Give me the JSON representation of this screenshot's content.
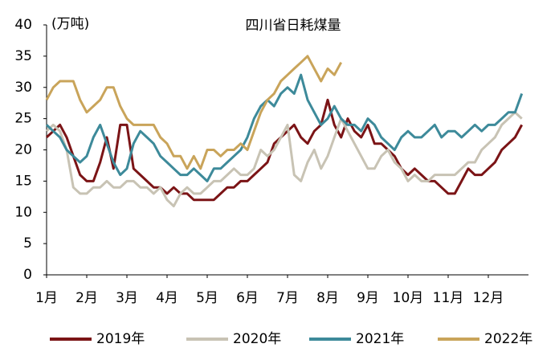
{
  "chart_data": {
    "type": "line",
    "title": "四川省日耗煤量",
    "y_label": "(万吨)",
    "categories": [
      "1月",
      null,
      null,
      null,
      null,
      null,
      "2月",
      null,
      null,
      null,
      null,
      null,
      "3月",
      null,
      null,
      null,
      null,
      null,
      "4月",
      null,
      null,
      null,
      null,
      null,
      "5月",
      null,
      null,
      null,
      null,
      null,
      "6月",
      null,
      null,
      null,
      null,
      null,
      "7月",
      null,
      null,
      null,
      null,
      null,
      "8月",
      null,
      null,
      null,
      null,
      null,
      "9月",
      null,
      null,
      null,
      null,
      null,
      "10月",
      null,
      null,
      null,
      null,
      null,
      "11月",
      null,
      null,
      null,
      null,
      null,
      "12月",
      null,
      null,
      null,
      null,
      null
    ],
    "series": [
      {
        "name": "2019年",
        "color": "#7b1416",
        "values": [
          22,
          23,
          24,
          22,
          19,
          16,
          15,
          15,
          18,
          22,
          17,
          24,
          24,
          17,
          16,
          15,
          14,
          14,
          13,
          14,
          13,
          13,
          12,
          12,
          12,
          12,
          13,
          14,
          14,
          15,
          15,
          16,
          17,
          18,
          21,
          22,
          23,
          24,
          22,
          21,
          23,
          24,
          28,
          24,
          22,
          25,
          23,
          22,
          24,
          21,
          21,
          20,
          19,
          17,
          16,
          17,
          16,
          15,
          15,
          14,
          13,
          13,
          15,
          17,
          16,
          16,
          17,
          18,
          20,
          21,
          22,
          24
        ]
      },
      {
        "name": "2020年",
        "color": "#c8c3b4",
        "values": [
          23,
          24,
          23,
          20,
          14,
          13,
          13,
          14,
          14,
          15,
          14,
          14,
          15,
          15,
          14,
          14,
          13,
          14,
          12,
          11,
          13,
          14,
          13,
          13,
          14,
          15,
          15,
          16,
          17,
          16,
          16,
          17,
          20,
          19,
          20,
          22,
          24,
          16,
          15,
          18,
          20,
          17,
          19,
          22,
          25,
          23,
          21,
          19,
          17,
          17,
          19,
          20,
          18,
          17,
          15,
          16,
          15,
          15,
          16,
          16,
          16,
          16,
          17,
          18,
          18,
          20,
          21,
          22,
          24,
          25,
          26,
          25
        ]
      },
      {
        "name": "2021年",
        "color": "#3d8a9a",
        "values": [
          24,
          23,
          22,
          20,
          19,
          18,
          19,
          22,
          24,
          21,
          18,
          16,
          17,
          21,
          23,
          22,
          21,
          19,
          18,
          17,
          16,
          16,
          17,
          16,
          15,
          17,
          17,
          18,
          19,
          20,
          22,
          25,
          27,
          28,
          27,
          29,
          30,
          29,
          32,
          28,
          26,
          24,
          25,
          27,
          25,
          24,
          24,
          23,
          25,
          24,
          22,
          21,
          20,
          22,
          23,
          22,
          22,
          23,
          24,
          22,
          23,
          23,
          22,
          23,
          24,
          23,
          24,
          24,
          25,
          26,
          26,
          29
        ]
      },
      {
        "name": "2022年",
        "color": "#c9a45a",
        "values": [
          28,
          30,
          31,
          31,
          31,
          28,
          26,
          27,
          28,
          30,
          30,
          27,
          25,
          24,
          24,
          24,
          24,
          22,
          21,
          19,
          19,
          17,
          19,
          17,
          20,
          20,
          19,
          20,
          20,
          21,
          20,
          23,
          26,
          28,
          29,
          31,
          32,
          33,
          34,
          35,
          33,
          31,
          33,
          32,
          34,
          null,
          null,
          null,
          null,
          null,
          null,
          null,
          null,
          null,
          null,
          null,
          null,
          null,
          null,
          null,
          null,
          null,
          null,
          null,
          null,
          null,
          null,
          null,
          null,
          null,
          null,
          null
        ]
      }
    ],
    "ylim": [
      0,
      40
    ],
    "yticks": [
      0,
      5,
      10,
      15,
      20,
      25,
      30,
      35,
      40
    ]
  }
}
